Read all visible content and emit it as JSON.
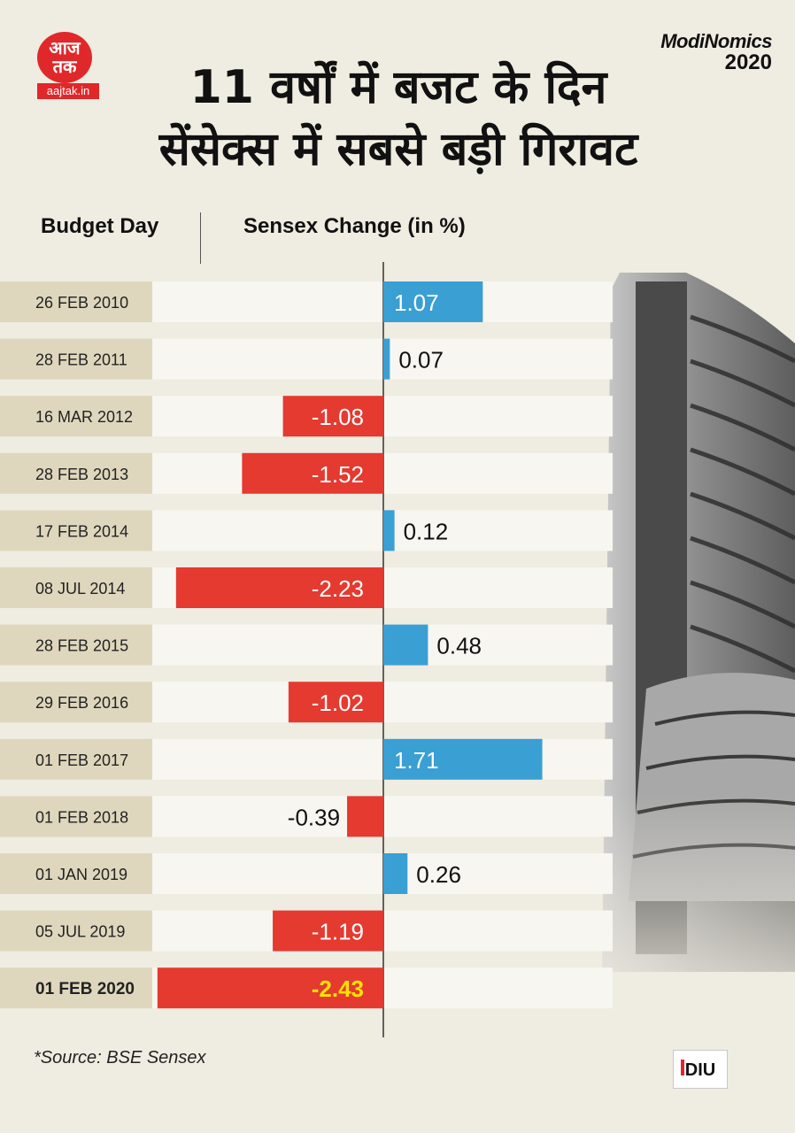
{
  "brand": {
    "aajtak_logo_text": "आज तक",
    "aajtak_domain": "aajtak.in",
    "series_line1": "ModiNomics",
    "series_line2": "2020"
  },
  "title": {
    "line1": "11 वर्षों में बजट के दिन",
    "line2": "सेंसेक्स में सबसे बड़ी गिरावट"
  },
  "headers": {
    "budget_day": "Budget Day",
    "sensex_change": "Sensex Change (in %)"
  },
  "colors": {
    "positive": "#3a9fd3",
    "negative": "#e43a30",
    "date_cell": "#dfd7bd",
    "row_band": "#f7f6f1",
    "highlight_value": "#ffe300"
  },
  "chart_data": {
    "type": "bar",
    "orientation": "horizontal",
    "categories": [
      "26 FEB 2010",
      "28 FEB 2011",
      "16 MAR 2012",
      "28 FEB 2013",
      "17 FEB 2014",
      "08 JUL 2014",
      "28 FEB 2015",
      "29 FEB 2016",
      "01 FEB 2017",
      "01 FEB 2018",
      "01 JAN 2019",
      "05 JUL 2019",
      "01 FEB 2020"
    ],
    "values": [
      1.07,
      0.07,
      -1.08,
      -1.52,
      0.12,
      -2.23,
      0.48,
      -1.02,
      1.71,
      -0.39,
      0.26,
      -1.19,
      -2.43
    ],
    "labels": [
      "1.07",
      "0.07",
      "-1.08",
      "-1.52",
      "0.12",
      "-2.23",
      "0.48",
      "-1.02",
      "1.71",
      "-0.39",
      "0.26",
      "-1.19",
      "-2.43"
    ],
    "highlight": "01 FEB 2020",
    "xlabel": "Sensex Change (in %)",
    "ylabel": "Budget Day",
    "grid": false
  },
  "footer": {
    "source": "*Source: BSE Sensex",
    "diu_logo": "DIU"
  }
}
